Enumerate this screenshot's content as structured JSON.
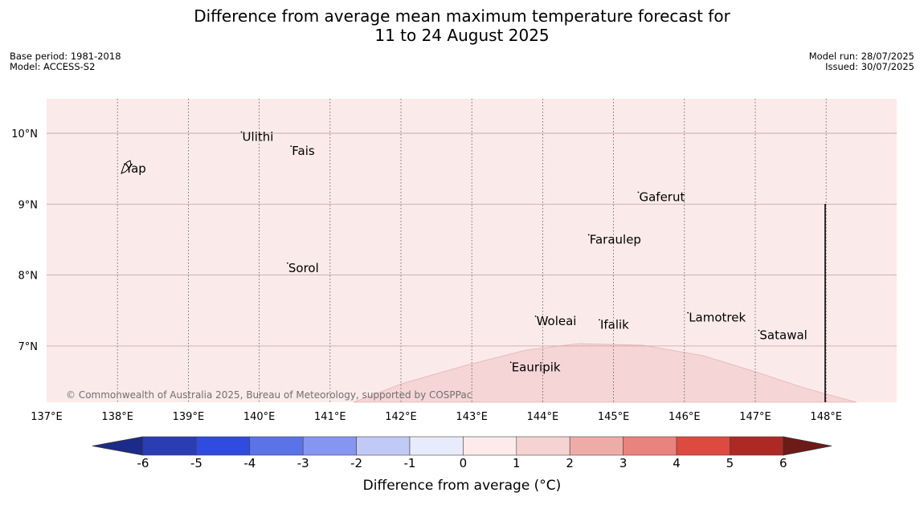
{
  "title_line1": "Difference from average mean maximum temperature forecast for",
  "title_line2": "11 to 24 August 2025",
  "meta_left": {
    "base_period": "Base period: 1981-2018",
    "model": "Model: ACCESS-S2"
  },
  "meta_right": {
    "model_run": "Model run: 28/07/2025",
    "issued": "Issued: 30/07/2025"
  },
  "copyright": "© Commonwealth of Australia 2025, Bureau of Meteorology, supported by COSPPac",
  "lon_labels": [
    "137°E",
    "138°E",
    "139°E",
    "140°E",
    "141°E",
    "142°E",
    "143°E",
    "144°E",
    "145°E",
    "146°E",
    "147°E",
    "148°E"
  ],
  "lat_labels": [
    "10°N",
    "9°N",
    "8°N",
    "7°N"
  ],
  "places": [
    {
      "name": "Yap",
      "lon": 138.1,
      "lat": 9.5
    },
    {
      "name": "Ulithi",
      "lon": 139.75,
      "lat": 9.95
    },
    {
      "name": "Fais",
      "lon": 140.45,
      "lat": 9.75
    },
    {
      "name": "Gaferut",
      "lon": 145.35,
      "lat": 9.1
    },
    {
      "name": "Faraulep",
      "lon": 144.65,
      "lat": 8.5
    },
    {
      "name": "Sorol",
      "lon": 140.4,
      "lat": 8.1
    },
    {
      "name": "Lamotrek",
      "lon": 146.05,
      "lat": 7.4
    },
    {
      "name": "Satawal",
      "lon": 147.05,
      "lat": 7.15
    },
    {
      "name": "Woleai",
      "lon": 143.9,
      "lat": 7.35
    },
    {
      "name": "Ifalik",
      "lon": 144.8,
      "lat": 7.3
    },
    {
      "name": "Eauripik",
      "lon": 143.55,
      "lat": 6.7
    }
  ],
  "colorbar": {
    "label": "Difference from average (°C)",
    "ticks": [
      "-6",
      "-5",
      "-4",
      "-3",
      "-2",
      "-1",
      "0",
      "1",
      "2",
      "3",
      "4",
      "5",
      "6"
    ],
    "colors": [
      "#1c2a8a",
      "#2a3db2",
      "#2f4be0",
      "#5a73e6",
      "#8496ef",
      "#c1c9f6",
      "#e8ebfb",
      "#fdeaea",
      "#f5d3d3",
      "#eeaca8",
      "#e9837d",
      "#dd4a40",
      "#ad2a24",
      "#6e1a18"
    ]
  },
  "fill_colors": {
    "background_anomaly": "#fbeaea",
    "region_anomaly": "#f5d5d5"
  }
}
